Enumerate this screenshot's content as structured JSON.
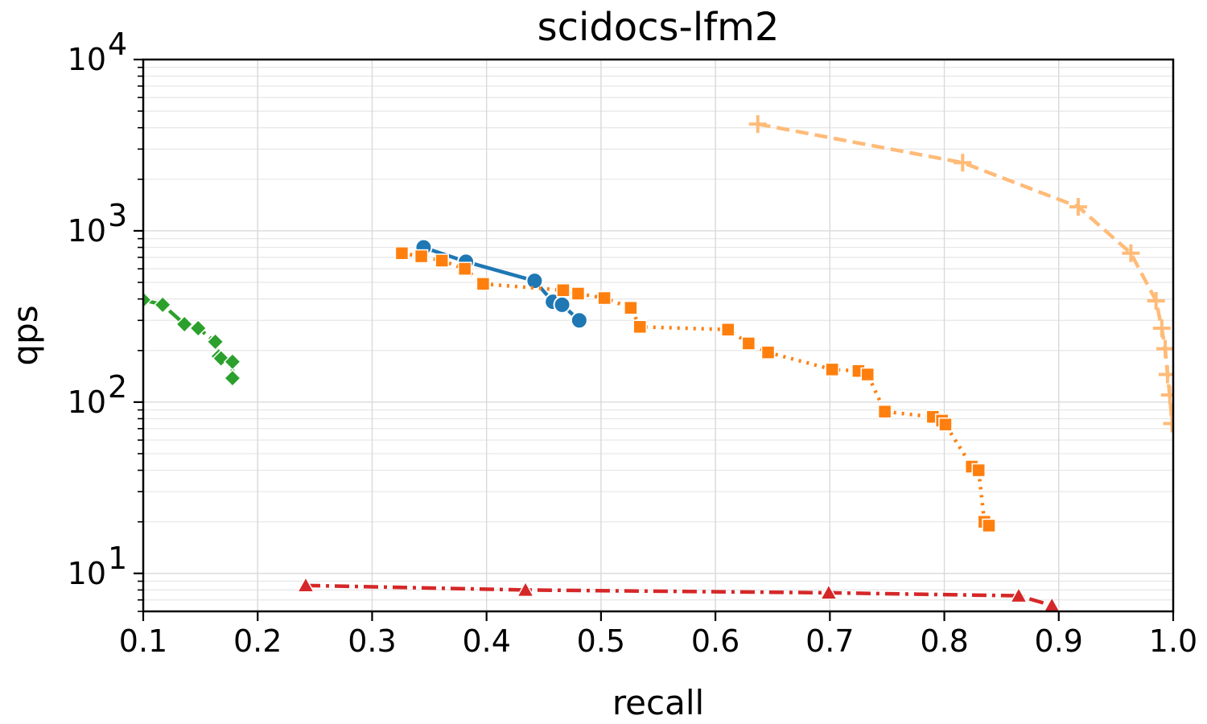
{
  "chart_data": {
    "type": "line",
    "title": "scidocs-lfm2",
    "xlabel": "recall",
    "ylabel": "qps",
    "xlim": [
      0.1,
      1.0
    ],
    "ylim": [
      6,
      10000
    ],
    "yscale": "log",
    "grid": true,
    "x_ticks": [
      {
        "value": 0.1,
        "label": "0.1"
      },
      {
        "value": 0.2,
        "label": "0.2"
      },
      {
        "value": 0.3,
        "label": "0.3"
      },
      {
        "value": 0.4,
        "label": "0.4"
      },
      {
        "value": 0.5,
        "label": "0.5"
      },
      {
        "value": 0.6,
        "label": "0.6"
      },
      {
        "value": 0.7,
        "label": "0.7"
      },
      {
        "value": 0.8,
        "label": "0.8"
      },
      {
        "value": 0.9,
        "label": "0.9"
      },
      {
        "value": 1.0,
        "label": "1.0"
      }
    ],
    "y_ticks": [
      {
        "value": 10,
        "base": "10",
        "exp": "1"
      },
      {
        "value": 100,
        "base": "10",
        "exp": "2"
      },
      {
        "value": 1000,
        "base": "10",
        "exp": "3"
      },
      {
        "value": 10000,
        "base": "10",
        "exp": "4"
      }
    ],
    "series": [
      {
        "name": "blue-circle",
        "color": "#1f77b4",
        "marker": "circle",
        "dash": "solid",
        "x": [
          0.345,
          0.382,
          0.442,
          0.458,
          0.466,
          0.481
        ],
        "y": [
          800,
          660,
          510,
          385,
          370,
          300
        ]
      },
      {
        "name": "orange-square",
        "color": "#ff7f0e",
        "marker": "square",
        "dash": "dotted",
        "x": [
          0.326,
          0.343,
          0.361,
          0.381,
          0.397,
          0.467,
          0.48,
          0.503,
          0.526,
          0.534,
          0.611,
          0.629,
          0.646,
          0.702,
          0.725,
          0.733,
          0.748,
          0.79,
          0.798,
          0.801,
          0.824,
          0.83,
          0.835,
          0.839
        ],
        "y": [
          740,
          710,
          670,
          600,
          490,
          450,
          430,
          405,
          355,
          275,
          265,
          220,
          195,
          155,
          152,
          145,
          88,
          82,
          78,
          74,
          42,
          40,
          20,
          19
        ]
      },
      {
        "name": "green-diamond",
        "color": "#2ca02c",
        "marker": "diamond",
        "dash": "dashdot",
        "x": [
          0.1,
          0.117,
          0.136,
          0.148,
          0.163,
          0.166,
          0.168,
          0.178,
          0.178
        ],
        "y": [
          395,
          370,
          285,
          270,
          225,
          185,
          180,
          172,
          138
        ]
      },
      {
        "name": "red-triangle",
        "color": "#d62728",
        "marker": "triangle",
        "dash": "dashdot",
        "x": [
          0.242,
          0.434,
          0.699,
          0.865,
          0.894
        ],
        "y": [
          8.5,
          8.0,
          7.7,
          7.4,
          6.5
        ]
      },
      {
        "name": "peach-plus",
        "color": "#ffbb78",
        "marker": "plus",
        "dash": "dashed",
        "x": [
          0.637,
          0.816,
          0.917,
          0.963,
          0.985,
          0.99,
          0.993,
          0.995,
          0.997,
          0.999
        ],
        "y": [
          4200,
          2500,
          1380,
          740,
          390,
          270,
          205,
          145,
          110,
          75
        ]
      }
    ]
  }
}
